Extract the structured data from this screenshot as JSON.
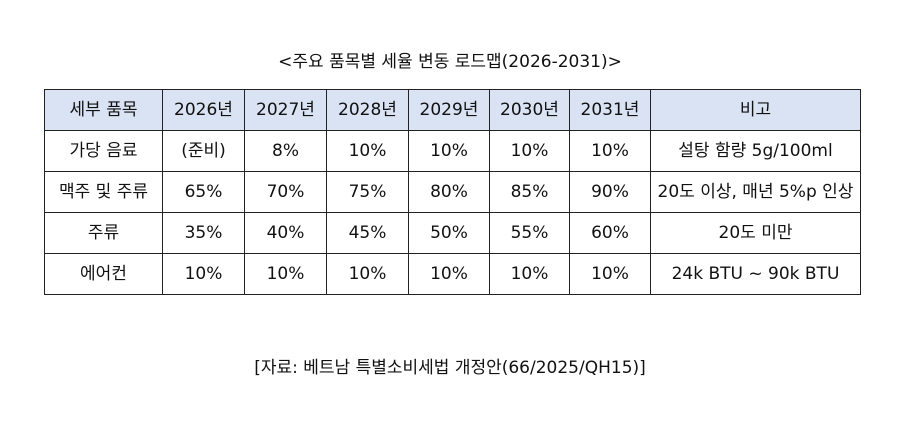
{
  "header": {
    "title": "<주요 품목별 세율 변동 로드맵(2026-2031)>"
  },
  "table": {
    "columns": [
      "세부 품목",
      "2026년",
      "2027년",
      "2028년",
      "2029년",
      "2030년",
      "2031년",
      "비고"
    ],
    "rows": [
      [
        "가당 음료",
        "(준비)",
        "8%",
        "10%",
        "10%",
        "10%",
        "10%",
        "설탕 함량 5g/100ml"
      ],
      [
        "맥주 및 주류",
        "65%",
        "70%",
        "75%",
        "80%",
        "85%",
        "90%",
        "20도 이상, 매년 5%p 인상"
      ],
      [
        "주류",
        "35%",
        "40%",
        "45%",
        "50%",
        "55%",
        "60%",
        "20도 미만"
      ],
      [
        "에어컨",
        "10%",
        "10%",
        "10%",
        "10%",
        "10%",
        "10%",
        "24k BTU ~ 90k BTU"
      ]
    ]
  },
  "footer": {
    "source": "[자료: 베트남 특별소비세법 개정안(66/2025/QH15)]"
  }
}
